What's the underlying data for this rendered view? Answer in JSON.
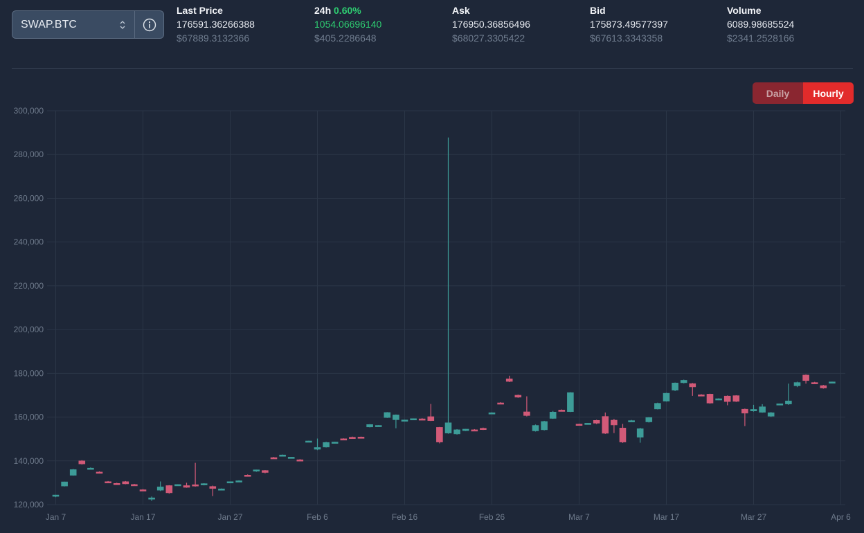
{
  "pair": {
    "label": "SWAP.BTC"
  },
  "stats": [
    {
      "key": "last",
      "header": "Last Price",
      "header_suffix": "",
      "value": "176591.36266388",
      "usd": "$67889.3132366"
    },
    {
      "key": "change",
      "header": "24h",
      "header_suffix": "0.60%",
      "value": "1054.06696140",
      "usd": "$405.2286648"
    },
    {
      "key": "ask",
      "header": "Ask",
      "header_suffix": "",
      "value": "176950.36856496",
      "usd": "$68027.3305422"
    },
    {
      "key": "bid",
      "header": "Bid",
      "header_suffix": "",
      "value": "175873.49577397",
      "usd": "$67613.3343358"
    },
    {
      "key": "volume",
      "header": "Volume",
      "header_suffix": "",
      "value": "6089.98685524",
      "usd": "$2341.2528166"
    }
  ],
  "toggle": {
    "daily": "Daily",
    "hourly": "Hourly",
    "active": "hourly"
  },
  "colors": {
    "up": "#3d9c98",
    "down": "#d25a78",
    "positive_text": "#2ecc71",
    "toggle_active": "#e22b2b"
  },
  "chart_data": {
    "type": "candlestick",
    "title": "",
    "xlabel": "",
    "ylabel": "",
    "ylim": [
      120000,
      300000
    ],
    "y_ticks": [
      "120,000",
      "140,000",
      "160,000",
      "180,000",
      "200,000",
      "220,000",
      "240,000",
      "260,000",
      "280,000",
      "300,000"
    ],
    "x_ticks": [
      {
        "label": "Jan 7",
        "day": 0
      },
      {
        "label": "Jan 17",
        "day": 10
      },
      {
        "label": "Jan 27",
        "day": 20
      },
      {
        "label": "Feb 6",
        "day": 30
      },
      {
        "label": "Feb 16",
        "day": 40
      },
      {
        "label": "Feb 26",
        "day": 50
      },
      {
        "label": "Mar 7",
        "day": 60
      },
      {
        "label": "Mar 17",
        "day": 70
      },
      {
        "label": "Mar 27",
        "day": 80
      },
      {
        "label": "Apr 6",
        "day": 90
      }
    ],
    "grid": true,
    "candles": [
      {
        "date": "Jan 7",
        "open": 123800,
        "high": 124500,
        "low": 123400,
        "close": 124400
      },
      {
        "date": "Jan 8",
        "open": 128500,
        "high": 130500,
        "low": 128300,
        "close": 130400
      },
      {
        "date": "Jan 9",
        "open": 133400,
        "high": 136300,
        "low": 133200,
        "close": 136000
      },
      {
        "date": "Jan 10",
        "open": 140000,
        "high": 140300,
        "low": 138300,
        "close": 138600
      },
      {
        "date": "Jan 11",
        "open": 136600,
        "high": 137000,
        "low": 136200,
        "close": 136700
      },
      {
        "date": "Jan 12",
        "open": 134900,
        "high": 135200,
        "low": 134600,
        "close": 134700
      },
      {
        "date": "Jan 13",
        "open": 130500,
        "high": 130800,
        "low": 130200,
        "close": 130400
      },
      {
        "date": "Jan 14",
        "open": 129700,
        "high": 130000,
        "low": 129100,
        "close": 129300
      },
      {
        "date": "Jan 15",
        "open": 130500,
        "high": 130800,
        "low": 129300,
        "close": 129500
      },
      {
        "date": "Jan 16",
        "open": 129200,
        "high": 129500,
        "low": 128800,
        "close": 129000
      },
      {
        "date": "Jan 17",
        "open": 126800,
        "high": 127100,
        "low": 126500,
        "close": 126700
      },
      {
        "date": "Jan 18",
        "open": 122900,
        "high": 123700,
        "low": 121700,
        "close": 123100
      },
      {
        "date": "Jan 19",
        "open": 126600,
        "high": 130600,
        "low": 126200,
        "close": 128100
      },
      {
        "date": "Jan 20",
        "open": 128700,
        "high": 128900,
        "low": 125000,
        "close": 125400
      },
      {
        "date": "Jan 21",
        "open": 129000,
        "high": 129300,
        "low": 128700,
        "close": 129200
      },
      {
        "date": "Jan 22",
        "open": 128700,
        "high": 130000,
        "low": 127700,
        "close": 127900
      },
      {
        "date": "Jan 23",
        "open": 129100,
        "high": 139100,
        "low": 128200,
        "close": 128600
      },
      {
        "date": "Jan 24",
        "open": 129200,
        "high": 129800,
        "low": 128800,
        "close": 129600
      },
      {
        "date": "Jan 25",
        "open": 128300,
        "high": 128700,
        "low": 123900,
        "close": 127400
      },
      {
        "date": "Jan 26",
        "open": 127100,
        "high": 127400,
        "low": 126800,
        "close": 127200
      },
      {
        "date": "Jan 27",
        "open": 130300,
        "high": 130600,
        "low": 130100,
        "close": 130500
      },
      {
        "date": "Jan 28",
        "open": 130800,
        "high": 131100,
        "low": 130600,
        "close": 130900
      },
      {
        "date": "Jan 29",
        "open": 133500,
        "high": 133800,
        "low": 133200,
        "close": 133300
      },
      {
        "date": "Jan 30",
        "open": 135300,
        "high": 136000,
        "low": 135000,
        "close": 135900
      },
      {
        "date": "Jan 31",
        "open": 135600,
        "high": 135800,
        "low": 134300,
        "close": 134700
      },
      {
        "date": "Feb 1",
        "open": 141500,
        "high": 141800,
        "low": 140900,
        "close": 141100
      },
      {
        "date": "Feb 2",
        "open": 142500,
        "high": 142900,
        "low": 142300,
        "close": 142700
      },
      {
        "date": "Feb 3",
        "open": 141500,
        "high": 141800,
        "low": 141200,
        "close": 141700
      },
      {
        "date": "Feb 4",
        "open": 140500,
        "high": 140800,
        "low": 140200,
        "close": 140300
      },
      {
        "date": "Feb 5",
        "open": 149000,
        "high": 149200,
        "low": 148800,
        "close": 149100
      },
      {
        "date": "Feb 6",
        "open": 145300,
        "high": 150200,
        "low": 144900,
        "close": 146100
      },
      {
        "date": "Feb 7",
        "open": 146300,
        "high": 148700,
        "low": 146100,
        "close": 148400
      },
      {
        "date": "Feb 8",
        "open": 148400,
        "high": 148700,
        "low": 148200,
        "close": 148600
      },
      {
        "date": "Feb 9",
        "open": 150100,
        "high": 150300,
        "low": 149800,
        "close": 149900
      },
      {
        "date": "Feb 10",
        "open": 150800,
        "high": 151100,
        "low": 150500,
        "close": 150700
      },
      {
        "date": "Feb 11",
        "open": 150900,
        "high": 151100,
        "low": 150300,
        "close": 150400
      },
      {
        "date": "Feb 12",
        "open": 155500,
        "high": 156800,
        "low": 155300,
        "close": 156600
      },
      {
        "date": "Feb 13",
        "open": 156100,
        "high": 156300,
        "low": 155900,
        "close": 156200
      },
      {
        "date": "Feb 14",
        "open": 159800,
        "high": 162300,
        "low": 159600,
        "close": 162100
      },
      {
        "date": "Feb 15",
        "open": 158800,
        "high": 161200,
        "low": 154900,
        "close": 161000
      },
      {
        "date": "Feb 16",
        "open": 158500,
        "high": 158800,
        "low": 158300,
        "close": 158700
      },
      {
        "date": "Feb 17",
        "open": 159200,
        "high": 159400,
        "low": 158900,
        "close": 159300
      },
      {
        "date": "Feb 18",
        "open": 159200,
        "high": 159500,
        "low": 158800,
        "close": 159100
      },
      {
        "date": "Feb 19",
        "open": 160200,
        "high": 166000,
        "low": 158200,
        "close": 158400
      },
      {
        "date": "Feb 20",
        "open": 155300,
        "high": 155500,
        "low": 148000,
        "close": 148600
      },
      {
        "date": "Feb 21",
        "open": 152700,
        "high": 287800,
        "low": 152400,
        "close": 157400
      },
      {
        "date": "Feb 22",
        "open": 152300,
        "high": 154500,
        "low": 152000,
        "close": 154200
      },
      {
        "date": "Feb 23",
        "open": 153800,
        "high": 154600,
        "low": 153600,
        "close": 154500
      },
      {
        "date": "Feb 24",
        "open": 154200,
        "high": 154500,
        "low": 153600,
        "close": 153800
      },
      {
        "date": "Feb 25",
        "open": 154900,
        "high": 155200,
        "low": 154100,
        "close": 154300
      },
      {
        "date": "Feb 26",
        "open": 161700,
        "high": 162200,
        "low": 161500,
        "close": 162000
      },
      {
        "date": "Feb 27",
        "open": 166500,
        "high": 166800,
        "low": 166100,
        "close": 166200
      },
      {
        "date": "Feb 28",
        "open": 177500,
        "high": 178900,
        "low": 176000,
        "close": 176300
      },
      {
        "date": "Mar 1",
        "open": 170000,
        "high": 170300,
        "low": 168800,
        "close": 169100
      },
      {
        "date": "Mar 2",
        "open": 162400,
        "high": 169500,
        "low": 160300,
        "close": 160700
      },
      {
        "date": "Mar 3",
        "open": 153700,
        "high": 156600,
        "low": 153400,
        "close": 156200
      },
      {
        "date": "Mar 4",
        "open": 154200,
        "high": 158300,
        "low": 153900,
        "close": 158000
      },
      {
        "date": "Mar 5",
        "open": 159400,
        "high": 162800,
        "low": 159200,
        "close": 162300
      },
      {
        "date": "Mar 6",
        "open": 163200,
        "high": 163500,
        "low": 162800,
        "close": 163000
      },
      {
        "date": "Mar 7",
        "open": 162500,
        "high": 171400,
        "low": 162300,
        "close": 171200
      },
      {
        "date": "Mar 8",
        "open": 156800,
        "high": 157000,
        "low": 156500,
        "close": 156700
      },
      {
        "date": "Mar 9",
        "open": 157000,
        "high": 157300,
        "low": 156800,
        "close": 157200
      },
      {
        "date": "Mar 10",
        "open": 158500,
        "high": 158800,
        "low": 156800,
        "close": 157200
      },
      {
        "date": "Mar 11",
        "open": 160300,
        "high": 162100,
        "low": 152300,
        "close": 152600
      },
      {
        "date": "Mar 12",
        "open": 158600,
        "high": 159200,
        "low": 152700,
        "close": 156400
      },
      {
        "date": "Mar 13",
        "open": 155000,
        "high": 156900,
        "low": 148200,
        "close": 148600
      },
      {
        "date": "Mar 14",
        "open": 158200,
        "high": 158700,
        "low": 157900,
        "close": 158400
      },
      {
        "date": "Mar 15",
        "open": 150800,
        "high": 155100,
        "low": 148300,
        "close": 154700
      },
      {
        "date": "Mar 16",
        "open": 157800,
        "high": 160000,
        "low": 157500,
        "close": 159800
      },
      {
        "date": "Mar 17",
        "open": 163700,
        "high": 166600,
        "low": 163500,
        "close": 166300
      },
      {
        "date": "Mar 18",
        "open": 167300,
        "high": 171100,
        "low": 167100,
        "close": 170900
      },
      {
        "date": "Mar 19",
        "open": 172300,
        "high": 175800,
        "low": 171900,
        "close": 175600
      },
      {
        "date": "Mar 20",
        "open": 175700,
        "high": 177100,
        "low": 175400,
        "close": 176800
      },
      {
        "date": "Mar 21",
        "open": 175300,
        "high": 175600,
        "low": 169700,
        "close": 173800
      },
      {
        "date": "Mar 22",
        "open": 170200,
        "high": 170500,
        "low": 169600,
        "close": 169800
      },
      {
        "date": "Mar 23",
        "open": 170500,
        "high": 170700,
        "low": 166100,
        "close": 166400
      },
      {
        "date": "Mar 24",
        "open": 167900,
        "high": 168600,
        "low": 167700,
        "close": 168400
      },
      {
        "date": "Mar 25",
        "open": 169600,
        "high": 169900,
        "low": 165400,
        "close": 167100
      },
      {
        "date": "Mar 26",
        "open": 169800,
        "high": 170000,
        "low": 166900,
        "close": 167200
      },
      {
        "date": "Mar 27",
        "open": 163600,
        "high": 163900,
        "low": 155900,
        "close": 161800
      },
      {
        "date": "Mar 28",
        "open": 162800,
        "high": 165600,
        "low": 162500,
        "close": 163500
      },
      {
        "date": "Mar 29",
        "open": 162200,
        "high": 165900,
        "low": 162000,
        "close": 164700
      },
      {
        "date": "Mar 30",
        "open": 160400,
        "high": 162300,
        "low": 160100,
        "close": 162000
      },
      {
        "date": "Mar 31",
        "open": 165900,
        "high": 166200,
        "low": 165700,
        "close": 166100
      },
      {
        "date": "Apr 1",
        "open": 166000,
        "high": 175300,
        "low": 165600,
        "close": 167400
      },
      {
        "date": "Apr 2",
        "open": 174300,
        "high": 176200,
        "low": 173700,
        "close": 175800
      },
      {
        "date": "Apr 3",
        "open": 179200,
        "high": 179500,
        "low": 175300,
        "close": 176700
      },
      {
        "date": "Apr 4",
        "open": 175800,
        "high": 176100,
        "low": 175300,
        "close": 175500
      },
      {
        "date": "Apr 5",
        "open": 174400,
        "high": 174700,
        "low": 173000,
        "close": 173300
      },
      {
        "date": "Apr 6",
        "open": 175900,
        "high": 176200,
        "low": 175700,
        "close": 176100
      }
    ]
  }
}
